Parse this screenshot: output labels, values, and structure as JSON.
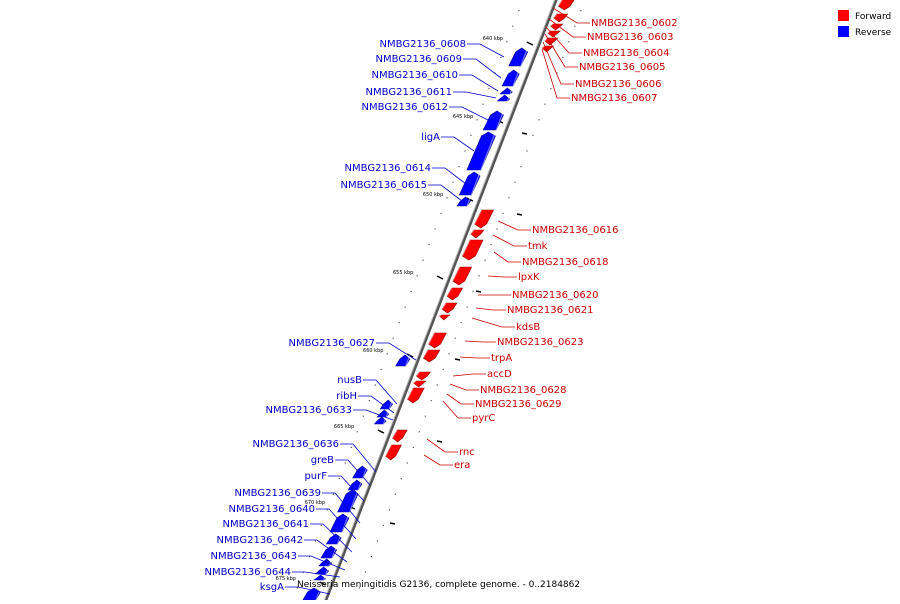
{
  "caption": "Neisseria meningitidis G2136, complete genome. - 0..2184862",
  "legend": {
    "forward": {
      "label": "Forward",
      "color": "#ff0000"
    },
    "reverse": {
      "label": "Reverse",
      "color": "#0000ff"
    }
  },
  "ticks": [
    "640 kbp",
    "645 kbp",
    "650 kbp",
    "655 kbp",
    "660 kbp",
    "665 kbp",
    "670 kbp",
    "675 kbp"
  ],
  "forward_genes": [
    "NMBG2136_0602",
    "NMBG2136_0603",
    "NMBG2136_0604",
    "NMBG2136_0605",
    "NMBG2136_0606",
    "NMBG2136_0607",
    "NMBG2136_0616",
    "tmk",
    "NMBG2136_0618",
    "lpxK",
    "NMBG2136_0620",
    "NMBG2136_0621",
    "kdsB",
    "NMBG2136_0623",
    "trpA",
    "accD",
    "NMBG2136_0628",
    "NMBG2136_0629",
    "pyrC",
    "rnc",
    "era"
  ],
  "reverse_genes": [
    "NMBG2136_0608",
    "NMBG2136_0609",
    "NMBG2136_0610",
    "NMBG2136_0611",
    "NMBG2136_0612",
    "ligA",
    "NMBG2136_0614",
    "NMBG2136_0615",
    "NMBG2136_0627",
    "nusB",
    "ribH",
    "NMBG2136_0633",
    "NMBG2136_0636",
    "greB",
    "purF",
    "NMBG2136_0639",
    "NMBG2136_0640",
    "NMBG2136_0641",
    "NMBG2136_0642",
    "NMBG2136_0643",
    "NMBG2136_0644",
    "ksgA"
  ]
}
